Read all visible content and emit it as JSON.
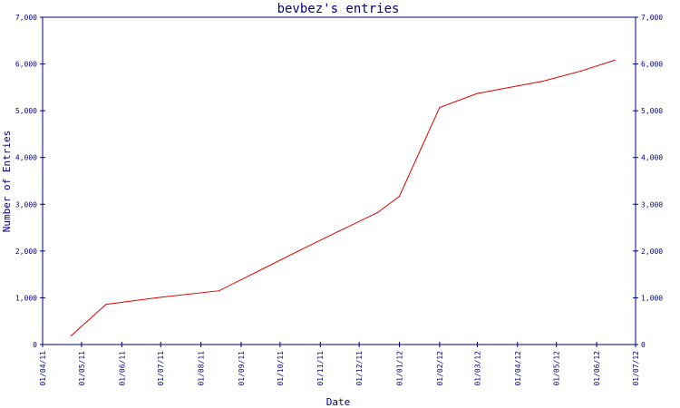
{
  "chart_data": {
    "type": "line",
    "title": "bevbez's entries",
    "xlabel": "Date",
    "ylabel": "Number of Entries",
    "x_ticks": [
      "01/04/11",
      "01/05/11",
      "01/06/11",
      "01/07/11",
      "01/08/11",
      "01/09/11",
      "01/10/11",
      "01/11/11",
      "01/12/11",
      "01/01/12",
      "01/02/12",
      "01/03/12",
      "01/04/12",
      "01/05/12",
      "01/06/12",
      "01/07/12"
    ],
    "y_ticks": [
      "0",
      "1,000",
      "2,000",
      "3,000",
      "4,000",
      "5,000",
      "6,000",
      "7,000"
    ],
    "ylim": [
      0,
      7000
    ],
    "xlim": [
      "2011-04-01",
      "2012-07-01"
    ],
    "grid": false,
    "colors": {
      "line": "#e00000",
      "axes": "#000080",
      "text": "#000080"
    },
    "series": [
      {
        "x": [
          "2011-04-23",
          "2011-05-20",
          "2011-07-01",
          "2011-08-15",
          "2011-09-15",
          "2011-10-15",
          "2011-11-15",
          "2011-12-15",
          "2012-01-01",
          "2012-02-01",
          "2012-03-01",
          "2012-04-01",
          "2012-04-20",
          "2012-05-20",
          "2012-06-15"
        ],
        "values": [
          190,
          860,
          1010,
          1150,
          1580,
          2000,
          2420,
          2820,
          3170,
          5070,
          5370,
          5530,
          5630,
          5850,
          6080
        ]
      }
    ]
  }
}
